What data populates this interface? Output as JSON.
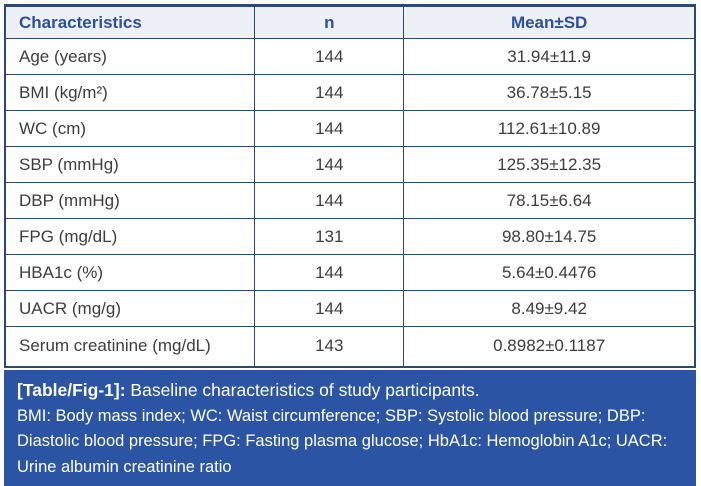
{
  "table": {
    "columns": {
      "characteristics": "Characteristics",
      "n": "n",
      "mean_sd": "Mean±SD"
    },
    "rows": [
      {
        "label": "Age (years)",
        "n": "144",
        "mean_sd": "31.94±11.9"
      },
      {
        "label": "BMI (kg/m²)",
        "n": "144",
        "mean_sd": "36.78±5.15"
      },
      {
        "label": "WC (cm)",
        "n": "144",
        "mean_sd": "112.61±10.89"
      },
      {
        "label": "SBP (mmHg)",
        "n": "144",
        "mean_sd": "125.35±12.35"
      },
      {
        "label": "DBP (mmHg)",
        "n": "144",
        "mean_sd": "78.15±6.64"
      },
      {
        "label": "FPG (mg/dL)",
        "n": "131",
        "mean_sd": "98.80±14.75"
      },
      {
        "label": "HBA1c (%)",
        "n": "144",
        "mean_sd": "5.64±0.4476"
      },
      {
        "label": "UACR (mg/g)",
        "n": "144",
        "mean_sd": "8.49±9.42"
      },
      {
        "label": "Serum creatinine (mg/dL)",
        "n": "143",
        "mean_sd": "0.8982±0.1187"
      }
    ]
  },
  "caption": {
    "figure_label": "[Table/Fig-1]:",
    "title": " Baseline characteristics of study participants.",
    "abbreviations": "BMI: Body mass index; WC: Waist circumference; SBP: Systolic blood pressure; DBP: Diastolic blood pressure; FPG: Fasting plasma glucose; HbA1c: Hemoglobin A1c; UACR: Urine albumin creatinine ratio"
  },
  "colors": {
    "border": "#2b4a72",
    "header_bg": "#eef0f8",
    "header_text": "#2d4fa1",
    "body_text": "#3d3d3d",
    "caption_bg": "#2b54a4",
    "caption_text": "#ffffff"
  }
}
